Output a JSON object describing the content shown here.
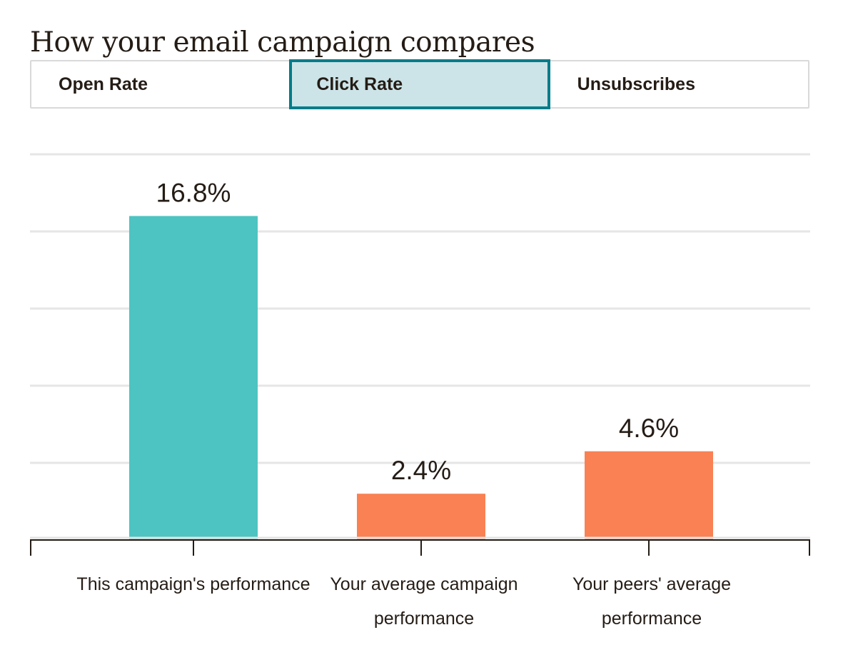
{
  "header": {
    "title": "How your email campaign compares"
  },
  "tabs": [
    {
      "label": "Open Rate",
      "active": false
    },
    {
      "label": "Click Rate",
      "active": true
    },
    {
      "label": "Unsubscribes",
      "active": false
    }
  ],
  "colors": {
    "accent": "#007c89",
    "active_tab_bg": "#cce4e8",
    "this_campaign": "#4dc4c1",
    "comparison": "#f98153",
    "gridline": "#e6e6e6",
    "axis": "#241c15"
  },
  "chart_data": {
    "type": "bar",
    "categories": [
      [
        "This campaign's performance"
      ],
      [
        "Your average campaign",
        "performance"
      ],
      [
        "Your peers' average",
        "performance"
      ]
    ],
    "values": [
      16.8,
      2.4,
      4.6
    ],
    "value_labels": [
      "16.8%",
      "2.4%",
      "4.6%"
    ],
    "bar_colors": [
      "#4dc4c1",
      "#f98153",
      "#f98153"
    ],
    "ylim": [
      0,
      20
    ],
    "grid": true,
    "gridline_count": 5,
    "title": "How your email campaign compares",
    "xlabel": "",
    "ylabel": ""
  }
}
